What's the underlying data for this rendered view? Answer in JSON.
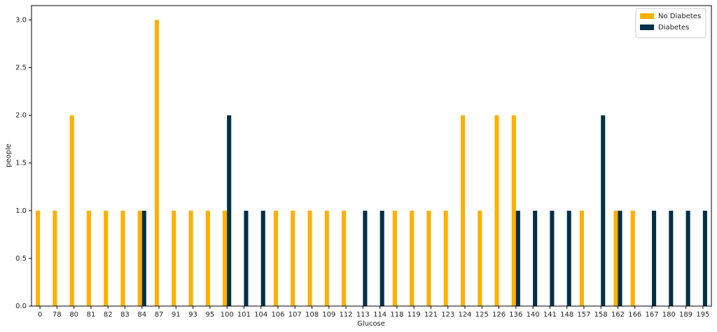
{
  "chart_data": {
    "type": "bar",
    "xlabel": "Glucose",
    "ylabel": "people",
    "categories": [
      "0",
      "78",
      "80",
      "81",
      "82",
      "83",
      "84",
      "87",
      "91",
      "93",
      "95",
      "100",
      "101",
      "104",
      "106",
      "107",
      "108",
      "109",
      "112",
      "113",
      "114",
      "118",
      "119",
      "121",
      "123",
      "124",
      "125",
      "126",
      "136",
      "140",
      "141",
      "148",
      "157",
      "158",
      "162",
      "166",
      "167",
      "180",
      "189",
      "195"
    ],
    "series": [
      {
        "name": "No Diabetes",
        "color": "#ffb000",
        "values": [
          1,
          1,
          2,
          1,
          1,
          1,
          1,
          3,
          1,
          1,
          1,
          1,
          0,
          0,
          1,
          1,
          1,
          1,
          1,
          0,
          0,
          1,
          1,
          1,
          1,
          2,
          1,
          2,
          2,
          0,
          0,
          0,
          1,
          0,
          1,
          1,
          0,
          0,
          0,
          0
        ]
      },
      {
        "name": "Diabetes",
        "color": "#003049",
        "values": [
          0,
          0,
          0,
          0,
          0,
          0,
          1,
          0,
          0,
          0,
          0,
          2,
          1,
          1,
          0,
          0,
          0,
          0,
          0,
          1,
          1,
          0,
          0,
          0,
          0,
          0,
          0,
          0,
          1,
          1,
          1,
          1,
          0,
          2,
          1,
          0,
          1,
          1,
          1,
          1
        ]
      }
    ],
    "ylim": [
      0,
      3.15
    ],
    "yticks": [
      {
        "value": 0,
        "label": "0.0"
      },
      {
        "value": 0.5,
        "label": "0.5"
      },
      {
        "value": 1,
        "label": "1.0"
      },
      {
        "value": 1.5,
        "label": "1.5"
      },
      {
        "value": 2,
        "label": "2.0"
      },
      {
        "value": 2.5,
        "label": "2.5"
      },
      {
        "value": 3,
        "label": "3.0"
      }
    ],
    "legend": "upper right"
  }
}
